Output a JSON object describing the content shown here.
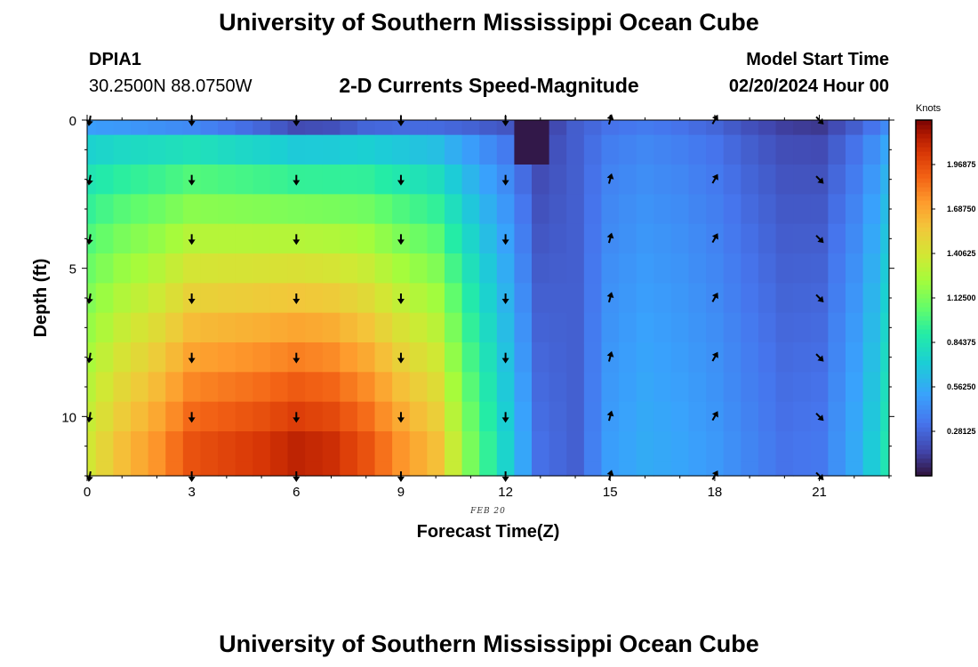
{
  "page": {
    "title_top": "University of Southern Mississippi Ocean Cube",
    "title_bottom": "University of Southern Mississippi Ocean Cube",
    "station_id": "DPIA1",
    "station_coords": "30.2500N  88.0750W",
    "plot_title": "2-D Currents Speed-Magnitude",
    "model_start_label": "Model Start Time",
    "model_start_value": "02/20/2024 Hour 00",
    "date_label": "FEB 20"
  },
  "colors": {
    "background": "#ffffff",
    "text": "#000000",
    "arrow": "#000000"
  },
  "chart_data": {
    "type": "heatmap",
    "xlabel": "Forecast Time(Z)",
    "ylabel": "Depth (ft)",
    "x_range": [
      0,
      23
    ],
    "y_range": [
      0,
      12
    ],
    "x_ticks": [
      "0",
      "3",
      "6",
      "9",
      "12",
      "15",
      "18",
      "21"
    ],
    "x_tick_values": [
      0,
      3,
      6,
      9,
      12,
      15,
      18,
      21
    ],
    "y_ticks": [
      "0",
      "5",
      "10"
    ],
    "y_tick_values": [
      0,
      5,
      10
    ],
    "colorbar": {
      "label": "Knots",
      "min": 0,
      "max": 2.25,
      "tick_labels": [
        "1.96875",
        "1.68750",
        "1.40625",
        "1.12500",
        "0.84375",
        "0.56250",
        "0.28125"
      ],
      "tick_values": [
        1.96875,
        1.6875,
        1.40625,
        1.125,
        0.84375,
        0.5625,
        0.28125
      ]
    },
    "hours": [
      0,
      0.5,
      1,
      1.5,
      2,
      2.5,
      3,
      3.5,
      4,
      4.5,
      5,
      5.5,
      6,
      6.5,
      7,
      7.5,
      8,
      8.5,
      9,
      9.5,
      10,
      10.5,
      11,
      11.5,
      12,
      12.5,
      13,
      13.5,
      14,
      14.5,
      15,
      15.5,
      16,
      16.5,
      17,
      17.5,
      18,
      18.5,
      19,
      19.5,
      20,
      20.5,
      21,
      21.5,
      22,
      22.5,
      23
    ],
    "depth_levels_ft": [
      0,
      1,
      2,
      3,
      4,
      5,
      6,
      7,
      8,
      9,
      10,
      11,
      12
    ],
    "speed_profile": {
      "hours": [
        0,
        1,
        2,
        3,
        4,
        5,
        6,
        7,
        8,
        9,
        10,
        11,
        12,
        13,
        14,
        15,
        16,
        17,
        18,
        19,
        20,
        21,
        22,
        23
      ],
      "surface_knots": [
        0.5,
        0.48,
        0.45,
        0.42,
        0.35,
        0.28,
        0.18,
        0.2,
        0.28,
        0.3,
        0.3,
        0.27,
        0.22,
        0.1,
        0.25,
        0.33,
        0.36,
        0.33,
        0.28,
        0.2,
        0.14,
        0.12,
        0.25,
        0.42
      ],
      "bottom_knots": [
        1.4,
        1.6,
        1.75,
        1.95,
        2.0,
        2.05,
        2.12,
        2.08,
        1.95,
        1.75,
        1.6,
        1.12,
        0.75,
        0.32,
        0.26,
        0.5,
        0.56,
        0.53,
        0.48,
        0.4,
        0.33,
        0.35,
        0.55,
        0.85
      ]
    },
    "arrows": {
      "hours": [
        0,
        3,
        6,
        9,
        12,
        15,
        18,
        21
      ],
      "depths_ft": [
        0,
        2,
        4,
        6,
        8,
        10,
        12
      ],
      "direction_deg_by_hour": [
        190,
        180,
        180,
        180,
        180,
        15,
        30,
        135
      ]
    }
  }
}
